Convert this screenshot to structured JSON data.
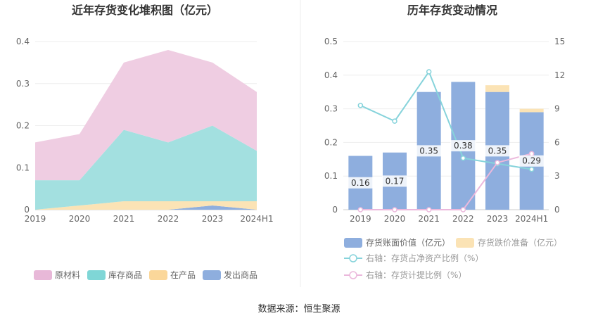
{
  "source_text": "数据来源：恒生聚源",
  "chart_data": [
    {
      "type": "area",
      "stacked": true,
      "title": "近年存货变化堆积图（亿元）",
      "categories": [
        "2019",
        "2020",
        "2021",
        "2022",
        "2023",
        "2024H1"
      ],
      "ylim": [
        0,
        0.4
      ],
      "yticks": [
        "0",
        "0.1",
        "0.2",
        "0.3",
        "0.4"
      ],
      "series": [
        {
          "name": "发出商品",
          "color": "#8eaede",
          "values": [
            0,
            0,
            0,
            0,
            0.01,
            0
          ]
        },
        {
          "name": "在产品",
          "color": "#fbe3b5",
          "values": [
            0,
            0.01,
            0.02,
            0.02,
            0.01,
            0.02
          ]
        },
        {
          "name": "库存商品",
          "color": "#a3e0e0",
          "values": [
            0.07,
            0.06,
            0.17,
            0.14,
            0.18,
            0.12
          ]
        },
        {
          "name": "原材料",
          "color": "#efcde2",
          "values": [
            0.09,
            0.11,
            0.16,
            0.22,
            0.15,
            0.14
          ]
        }
      ],
      "legend": [
        "原材料",
        "库存商品",
        "在产品",
        "发出商品"
      ],
      "legend_colors": [
        "#e8b8d8",
        "#7fd6d6",
        "#fbd79a",
        "#8eaede"
      ],
      "legend_position": "bottom"
    },
    {
      "type": "bar",
      "title": "历年存货变动情况",
      "categories": [
        "2019",
        "2020",
        "2021",
        "2022",
        "2023",
        "2024H1"
      ],
      "ylim": [
        0,
        0.5
      ],
      "yticks": [
        "0",
        "0.1",
        "0.2",
        "0.3",
        "0.4",
        "0.5"
      ],
      "y2lim": [
        0,
        15
      ],
      "y2ticks": [
        "0",
        "3",
        "6",
        "9",
        "12",
        "15"
      ],
      "bar_labels": [
        "0.16",
        "0.17",
        "0.35",
        "0.38",
        "0.35",
        "0.29"
      ],
      "series": [
        {
          "name": "存货账面价值（亿元）",
          "kind": "bar",
          "color": "#8eaede",
          "values": [
            0.16,
            0.17,
            0.35,
            0.38,
            0.35,
            0.29
          ]
        },
        {
          "name": "存货跌价准备（亿元）",
          "kind": "bar-stack",
          "color": "#fbe3b5",
          "values": [
            0,
            0,
            0,
            0,
            0.02,
            0.01
          ]
        },
        {
          "name": "右轴：存货占净资产比例（%）",
          "kind": "line",
          "axis": "right",
          "color": "#86d3db",
          "values": [
            9.3,
            7.9,
            12.3,
            4.6,
            4.1,
            3.6
          ]
        },
        {
          "name": "右轴：存货计提比例（%）",
          "kind": "line",
          "axis": "right",
          "color": "#ebb8dc",
          "values": [
            0,
            0,
            0,
            0,
            4.2,
            5.0
          ]
        }
      ],
      "legend_position": "bottom"
    }
  ]
}
